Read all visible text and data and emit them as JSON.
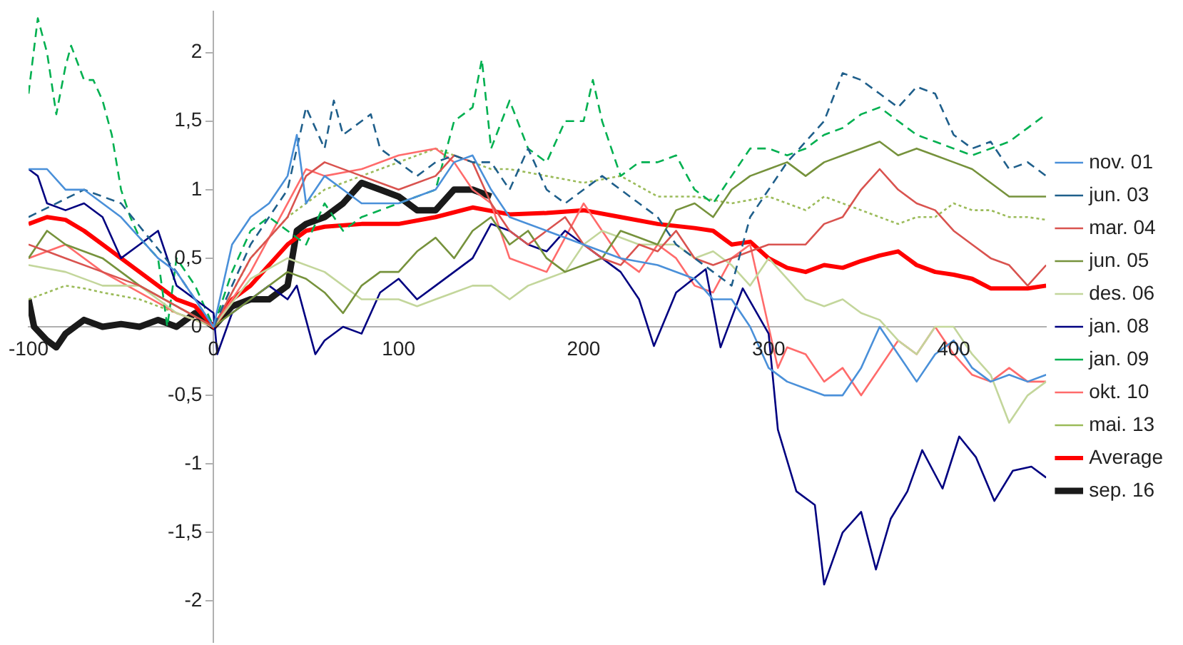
{
  "chart_data": {
    "type": "line",
    "xlim": [
      -100,
      450
    ],
    "xticks": [
      -100,
      0,
      100,
      200,
      300,
      400
    ],
    "ylim": [
      -2.3,
      2.3
    ],
    "yticks": [
      {
        "value": -2,
        "label": "-2"
      },
      {
        "value": -1.5,
        "label": "-1,5"
      },
      {
        "value": -1,
        "label": "-1"
      },
      {
        "value": -0.5,
        "label": "-0,5"
      },
      0,
      {
        "value": 0.5,
        "label": "0,5"
      },
      1,
      {
        "value": 1.5,
        "label": "1,5"
      },
      2
    ],
    "grid": false,
    "legend": "right",
    "marker": "none",
    "series": [
      {
        "name": "nov. 01",
        "color": "#4a90d9",
        "line_style": "solid",
        "x": [
          -100,
          -90,
          -80,
          -70,
          -60,
          -50,
          -40,
          -30,
          -20,
          -10,
          0,
          10,
          20,
          30,
          40,
          45,
          50,
          60,
          70,
          80,
          100,
          120,
          130,
          140,
          150,
          160,
          180,
          200,
          220,
          240,
          260,
          270,
          280,
          290,
          300,
          310,
          320,
          330,
          340,
          350,
          360,
          370,
          380,
          390,
          400,
          410,
          420,
          430,
          440,
          450
        ],
        "values": [
          1.15,
          1.15,
          1.0,
          1.0,
          0.9,
          0.8,
          0.65,
          0.5,
          0.4,
          0.2,
          0.0,
          0.6,
          0.8,
          0.9,
          1.1,
          1.4,
          0.9,
          1.1,
          1.0,
          0.9,
          0.9,
          1.0,
          1.2,
          1.25,
          1.0,
          0.8,
          0.7,
          0.6,
          0.5,
          0.45,
          0.35,
          0.2,
          0.2,
          0.0,
          -0.3,
          -0.4,
          -0.45,
          -0.5,
          -0.5,
          -0.3,
          0.0,
          -0.2,
          -0.4,
          -0.2,
          -0.1,
          -0.3,
          -0.4,
          -0.35,
          -0.4,
          -0.35
        ]
      },
      {
        "name": "jun. 03",
        "color": "#1f5f8b",
        "line_style": "dashed",
        "x": [
          -100,
          -70,
          -50,
          -20,
          0,
          20,
          40,
          50,
          60,
          65,
          70,
          80,
          85,
          90,
          100,
          110,
          120,
          130,
          140,
          150,
          160,
          170,
          180,
          190,
          200,
          210,
          220,
          230,
          240,
          250,
          260,
          270,
          280,
          290,
          300,
          310,
          320,
          330,
          340,
          350,
          360,
          370,
          380,
          390,
          400,
          410,
          420,
          430,
          440,
          450
        ],
        "values": [
          0.8,
          1.0,
          0.9,
          0.4,
          0.0,
          0.6,
          1.0,
          1.6,
          1.3,
          1.65,
          1.4,
          1.5,
          1.55,
          1.3,
          1.2,
          1.1,
          1.2,
          1.25,
          1.2,
          1.2,
          1.0,
          1.3,
          1.0,
          0.9,
          1.0,
          1.1,
          1.0,
          0.9,
          0.8,
          0.6,
          0.5,
          0.4,
          0.3,
          0.8,
          1.0,
          1.2,
          1.35,
          1.5,
          1.85,
          1.8,
          1.7,
          1.6,
          1.75,
          1.7,
          1.4,
          1.3,
          1.35,
          1.15,
          1.2,
          1.1
        ]
      },
      {
        "name": "mar. 04",
        "color": "#d9534f",
        "line_style": "solid",
        "x": [
          -100,
          -90,
          -80,
          -60,
          -40,
          -20,
          0,
          20,
          40,
          50,
          60,
          80,
          100,
          120,
          130,
          140,
          150,
          160,
          170,
          180,
          190,
          200,
          210,
          220,
          230,
          240,
          250,
          260,
          270,
          280,
          290,
          300,
          320,
          330,
          340,
          350,
          360,
          370,
          380,
          390,
          400,
          410,
          420,
          430,
          440,
          450
        ],
        "values": [
          0.6,
          0.55,
          0.5,
          0.4,
          0.3,
          0.15,
          0.0,
          0.5,
          0.8,
          1.1,
          1.2,
          1.1,
          1.0,
          1.1,
          1.25,
          1.2,
          0.9,
          0.7,
          0.6,
          0.7,
          0.8,
          0.6,
          0.5,
          0.45,
          0.6,
          0.55,
          0.7,
          0.5,
          0.45,
          0.5,
          0.55,
          0.6,
          0.6,
          0.75,
          0.8,
          1.0,
          1.15,
          1.0,
          0.9,
          0.85,
          0.7,
          0.6,
          0.5,
          0.45,
          0.3,
          0.45
        ]
      },
      {
        "name": "jun. 05",
        "color": "#76923c",
        "line_style": "solid",
        "x": [
          -100,
          -90,
          -80,
          -60,
          -40,
          -20,
          0,
          20,
          40,
          50,
          60,
          70,
          80,
          90,
          100,
          110,
          120,
          130,
          140,
          150,
          160,
          170,
          180,
          190,
          200,
          210,
          220,
          230,
          240,
          250,
          260,
          270,
          280,
          290,
          300,
          310,
          320,
          330,
          340,
          350,
          360,
          370,
          380,
          390,
          400,
          410,
          420,
          430,
          440,
          450
        ],
        "values": [
          0.5,
          0.7,
          0.6,
          0.5,
          0.3,
          0.15,
          0.0,
          0.2,
          0.4,
          0.35,
          0.25,
          0.1,
          0.3,
          0.4,
          0.4,
          0.55,
          0.65,
          0.5,
          0.7,
          0.8,
          0.6,
          0.7,
          0.5,
          0.4,
          0.45,
          0.5,
          0.7,
          0.65,
          0.6,
          0.85,
          0.9,
          0.8,
          1.0,
          1.1,
          1.15,
          1.2,
          1.1,
          1.2,
          1.25,
          1.3,
          1.35,
          1.25,
          1.3,
          1.25,
          1.2,
          1.15,
          1.05,
          0.95,
          0.95,
          0.95
        ]
      },
      {
        "name": "des. 06",
        "color": "#c3d69b",
        "line_style": "solid",
        "x": [
          -100,
          -80,
          -60,
          -40,
          -20,
          0,
          20,
          40,
          60,
          80,
          100,
          110,
          120,
          130,
          140,
          150,
          160,
          170,
          180,
          190,
          200,
          210,
          220,
          230,
          240,
          250,
          260,
          270,
          280,
          290,
          300,
          310,
          320,
          330,
          340,
          350,
          360,
          370,
          380,
          390,
          400,
          410,
          420,
          430,
          440,
          450
        ],
        "values": [
          0.45,
          0.4,
          0.3,
          0.3,
          0.1,
          0.0,
          0.35,
          0.5,
          0.4,
          0.2,
          0.2,
          0.15,
          0.2,
          0.25,
          0.3,
          0.3,
          0.2,
          0.3,
          0.35,
          0.4,
          0.6,
          0.7,
          0.65,
          0.6,
          0.6,
          0.6,
          0.5,
          0.55,
          0.45,
          0.3,
          0.5,
          0.35,
          0.2,
          0.15,
          0.2,
          0.1,
          0.05,
          -0.1,
          -0.2,
          0.0,
          0.0,
          -0.2,
          -0.35,
          -0.7,
          -0.5,
          -0.4
        ]
      },
      {
        "name": "jan. 08",
        "color": "#000080",
        "line_style": "solid",
        "x": [
          -100,
          -95,
          -90,
          -80,
          -70,
          -60,
          -50,
          -40,
          -30,
          -20,
          -10,
          0,
          2,
          10,
          20,
          30,
          40,
          45,
          55,
          60,
          70,
          80,
          90,
          100,
          110,
          120,
          130,
          140,
          150,
          160,
          170,
          180,
          190,
          200,
          210,
          220,
          230,
          238,
          250,
          266,
          274,
          286,
          300,
          305,
          315,
          325,
          330,
          340,
          350,
          358,
          366,
          375,
          383,
          394,
          403,
          412,
          422,
          432,
          442,
          450
        ],
        "values": [
          1.15,
          1.1,
          0.9,
          0.85,
          0.9,
          0.8,
          0.5,
          0.6,
          0.7,
          0.3,
          0.2,
          0.1,
          -0.2,
          0.1,
          0.2,
          0.3,
          0.2,
          0.3,
          -0.2,
          -0.1,
          0.0,
          -0.05,
          0.25,
          0.35,
          0.2,
          0.3,
          0.4,
          0.5,
          0.75,
          0.7,
          0.6,
          0.55,
          0.7,
          0.6,
          0.5,
          0.4,
          0.2,
          -0.14,
          0.25,
          0.42,
          -0.15,
          0.28,
          -0.05,
          -0.75,
          -1.2,
          -1.3,
          -1.88,
          -1.5,
          -1.35,
          -1.77,
          -1.4,
          -1.2,
          -0.9,
          -1.18,
          -0.8,
          -0.95,
          -1.27,
          -1.05,
          -1.02,
          -1.1
        ]
      },
      {
        "name": "jan. 09",
        "color": "#00b050",
        "line_style": "dashed",
        "x": [
          -100,
          -95,
          -90,
          -85,
          -80,
          -77,
          -70,
          -65,
          -60,
          -55,
          -50,
          -45,
          -40,
          -30,
          -25,
          -20,
          -10,
          0,
          10,
          20,
          30,
          40,
          50,
          60,
          70,
          80,
          100,
          120,
          130,
          140,
          145,
          150,
          160,
          170,
          180,
          190,
          200,
          205,
          210,
          220,
          230,
          240,
          250,
          260,
          270,
          280,
          290,
          300,
          310,
          320,
          330,
          340,
          350,
          360,
          370,
          380,
          390,
          400,
          410,
          420,
          430,
          440,
          450
        ],
        "values": [
          1.7,
          2.25,
          2.0,
          1.55,
          1.9,
          2.05,
          1.8,
          1.8,
          1.65,
          1.4,
          1.0,
          0.8,
          0.65,
          0.5,
          0.0,
          0.5,
          0.3,
          0.0,
          0.4,
          0.7,
          0.8,
          0.7,
          0.6,
          0.9,
          0.7,
          0.8,
          0.9,
          1.0,
          1.5,
          1.6,
          1.95,
          1.3,
          1.65,
          1.3,
          1.2,
          1.5,
          1.5,
          1.8,
          1.5,
          1.1,
          1.2,
          1.2,
          1.25,
          1.0,
          0.9,
          1.1,
          1.3,
          1.3,
          1.25,
          1.3,
          1.4,
          1.45,
          1.55,
          1.6,
          1.5,
          1.4,
          1.35,
          1.3,
          1.25,
          1.3,
          1.35,
          1.45,
          1.55
        ]
      },
      {
        "name": "okt. 10",
        "color": "#ff6b6b",
        "line_style": "solid",
        "x": [
          -100,
          -80,
          -60,
          -40,
          -20,
          0,
          20,
          40,
          50,
          60,
          80,
          100,
          120,
          130,
          140,
          150,
          160,
          180,
          200,
          210,
          220,
          230,
          240,
          250,
          260,
          270,
          280,
          290,
          300,
          305,
          310,
          320,
          330,
          340,
          350,
          360,
          370,
          380,
          390,
          400,
          410,
          420,
          430,
          440,
          450
        ],
        "values": [
          0.5,
          0.6,
          0.4,
          0.25,
          0.1,
          0.0,
          0.4,
          0.9,
          1.15,
          1.1,
          1.15,
          1.25,
          1.3,
          1.2,
          1.0,
          0.9,
          0.5,
          0.4,
          0.9,
          0.7,
          0.5,
          0.4,
          0.6,
          0.5,
          0.3,
          0.25,
          0.5,
          0.6,
          0.0,
          -0.3,
          -0.15,
          -0.2,
          -0.4,
          -0.3,
          -0.5,
          -0.3,
          -0.1,
          -0.2,
          0.0,
          -0.2,
          -0.35,
          -0.4,
          -0.3,
          -0.4,
          -0.4
        ]
      },
      {
        "name": "mai. 13",
        "color": "#9bbb59",
        "line_style": "dotted",
        "x": [
          -100,
          -90,
          -80,
          -70,
          -60,
          -40,
          -20,
          0,
          20,
          40,
          60,
          80,
          100,
          120,
          130,
          140,
          150,
          160,
          180,
          200,
          220,
          240,
          260,
          280,
          300,
          310,
          320,
          330,
          340,
          350,
          360,
          370,
          380,
          390,
          400,
          410,
          420,
          430,
          440,
          450
        ],
        "values": [
          0.2,
          0.25,
          0.3,
          0.28,
          0.25,
          0.2,
          0.1,
          0.0,
          0.5,
          0.8,
          1.0,
          1.1,
          1.2,
          1.3,
          1.25,
          1.2,
          1.15,
          1.15,
          1.1,
          1.05,
          1.1,
          0.95,
          0.95,
          0.9,
          0.95,
          0.9,
          0.85,
          0.95,
          0.9,
          0.85,
          0.8,
          0.75,
          0.8,
          0.8,
          0.9,
          0.85,
          0.85,
          0.8,
          0.8,
          0.78
        ]
      },
      {
        "name": "Average",
        "color": "#ff0000",
        "line_style": "solid",
        "x": [
          -100,
          -90,
          -80,
          -70,
          -60,
          -50,
          -40,
          -30,
          -20,
          -10,
          0,
          10,
          20,
          30,
          40,
          50,
          60,
          80,
          100,
          120,
          140,
          160,
          180,
          200,
          220,
          240,
          260,
          270,
          280,
          290,
          300,
          310,
          320,
          330,
          340,
          350,
          360,
          370,
          380,
          390,
          400,
          410,
          420,
          430,
          440,
          450
        ],
        "values": [
          0.75,
          0.8,
          0.78,
          0.7,
          0.6,
          0.5,
          0.4,
          0.3,
          0.2,
          0.15,
          0.0,
          0.2,
          0.3,
          0.45,
          0.6,
          0.7,
          0.73,
          0.75,
          0.75,
          0.8,
          0.87,
          0.82,
          0.83,
          0.85,
          0.8,
          0.75,
          0.72,
          0.7,
          0.6,
          0.62,
          0.5,
          0.43,
          0.4,
          0.45,
          0.43,
          0.48,
          0.52,
          0.55,
          0.45,
          0.4,
          0.38,
          0.35,
          0.28,
          0.28,
          0.28,
          0.3
        ]
      },
      {
        "name": "sep. 16",
        "color": "#1a1a1a",
        "line_style": "solid",
        "x": [
          -100,
          -97,
          -90,
          -85,
          -80,
          -70,
          -60,
          -50,
          -40,
          -30,
          -20,
          -10,
          0,
          10,
          20,
          30,
          35,
          40,
          45,
          50,
          60,
          70,
          80,
          90,
          100,
          110,
          120,
          130,
          140,
          150
        ],
        "values": [
          0.2,
          0.0,
          -0.1,
          -0.15,
          -0.05,
          0.05,
          0.0,
          0.02,
          0.0,
          0.05,
          0.0,
          0.1,
          0.0,
          0.15,
          0.2,
          0.2,
          0.25,
          0.3,
          0.7,
          0.75,
          0.8,
          0.9,
          1.05,
          1.0,
          0.95,
          0.85,
          0.85,
          1.0,
          1.0,
          0.95
        ]
      }
    ]
  }
}
